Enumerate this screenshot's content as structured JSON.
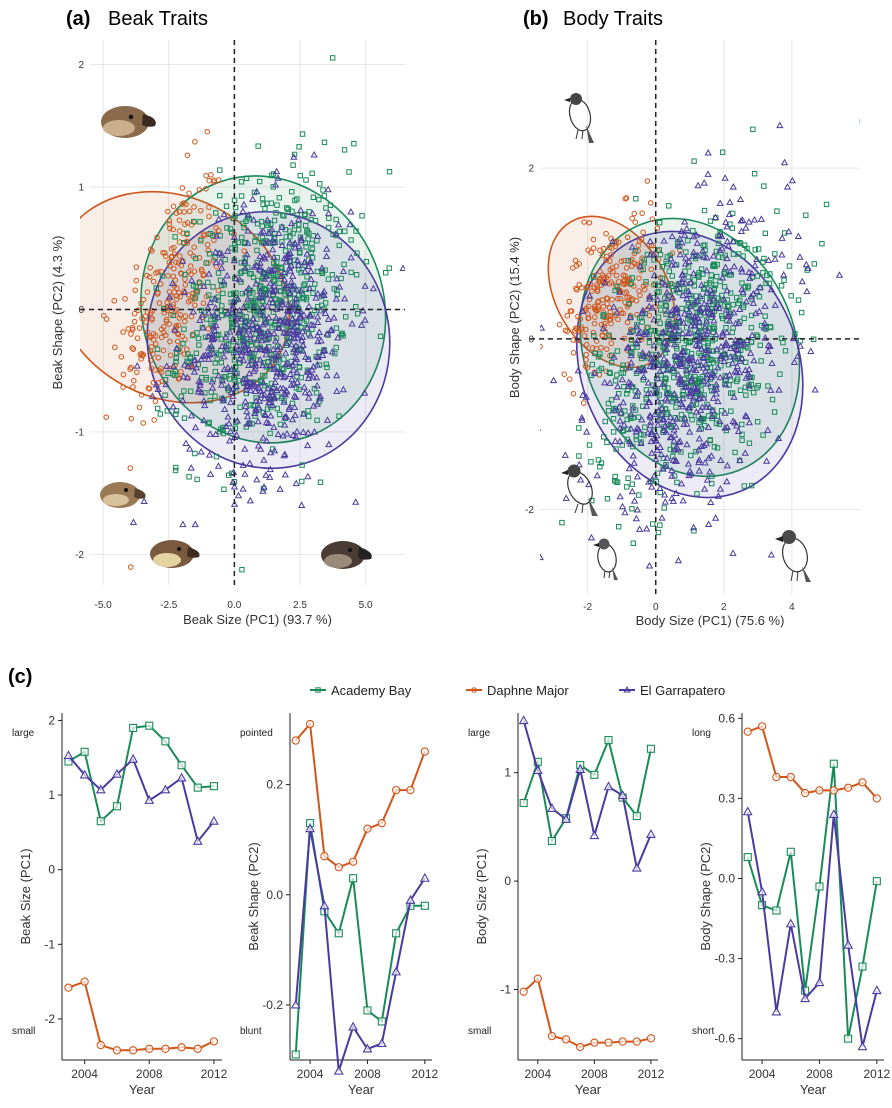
{
  "colors": {
    "Academy Bay": "#1a8a5a",
    "Daphne Major": "#d0561a",
    "El Garrapatero": "#4b3aa0"
  },
  "icons": [
    "finch-head-icon",
    "finch-body-icon"
  ],
  "chart_data": [
    {
      "id": "a",
      "type": "scatter",
      "panel_label": "(a)",
      "title": "Beak Traits",
      "xlabel": "Beak Size (PC1) (93.7 %)",
      "ylabel": "Beak Shape (PC2) (4.3 %)",
      "xlim": [
        -5.5,
        6.5
      ],
      "ylim": [
        -2.25,
        2.2
      ],
      "xticks": [
        -5.0,
        -2.5,
        0.0,
        2.5,
        5.0
      ],
      "xtick_labels": [
        "-5.0",
        "-2.5",
        "0.0",
        "2.5",
        "5.0"
      ],
      "yticks": [
        -2,
        -1,
        0,
        1,
        2
      ],
      "ytick_labels": [
        "-2",
        "-1",
        "0",
        "1",
        "2"
      ],
      "grid": true,
      "ellipses": [
        {
          "name": "Daphne Major",
          "cx": -2.4,
          "cy": 0.1,
          "rx": 2.9,
          "ry": 1.0,
          "angle": 62
        },
        {
          "name": "Academy Bay",
          "cx": 1.1,
          "cy": 0.0,
          "rx": 3.5,
          "ry": 1.1,
          "angle": 18
        },
        {
          "name": "El Garrapatero",
          "cx": 1.3,
          "cy": -0.25,
          "rx": 3.5,
          "ry": 1.05,
          "angle": 12
        }
      ],
      "series": [
        {
          "name": "Daphne Major",
          "marker": "circle",
          "cx": -2.4,
          "cy": 0.1,
          "sx": 1.0,
          "sy": 0.5,
          "rho": 0.5,
          "n": 260
        },
        {
          "name": "Academy Bay",
          "marker": "square",
          "cx": 1.1,
          "cy": 0.0,
          "sx": 1.6,
          "sy": 0.55,
          "rho": 0.25,
          "n": 650
        },
        {
          "name": "El Garrapatero",
          "marker": "triangle",
          "cx": 1.3,
          "cy": -0.25,
          "sx": 1.6,
          "sy": 0.55,
          "rho": 0.2,
          "n": 600
        }
      ]
    },
    {
      "id": "b",
      "type": "scatter",
      "panel_label": "(b)",
      "title": "Body Traits",
      "xlabel": "Body Size (PC1) (75.6 %)",
      "ylabel": "Body Shape (PC2) (15.4 %)",
      "xlim": [
        -3.4,
        6.0
      ],
      "ylim": [
        -3.0,
        3.5
      ],
      "xticks": [
        -2,
        0,
        2,
        4
      ],
      "xtick_labels": [
        "-2",
        "0",
        "2",
        "4"
      ],
      "yticks": [
        -2,
        0,
        2
      ],
      "ytick_labels": [
        "-2",
        "0",
        "2"
      ],
      "grid": true,
      "ellipses": [
        {
          "name": "Daphne Major",
          "cx": -1.3,
          "cy": 0.55,
          "rx": 1.75,
          "ry": 0.95,
          "angle": 30
        },
        {
          "name": "Academy Bay",
          "cx": 1.0,
          "cy": -0.1,
          "rx": 3.3,
          "ry": 1.55,
          "angle": 22
        },
        {
          "name": "El Garrapatero",
          "cx": 1.0,
          "cy": -0.3,
          "rx": 3.4,
          "ry": 1.6,
          "angle": 22
        }
      ],
      "series": [
        {
          "name": "Daphne Major",
          "marker": "circle",
          "cx": -1.3,
          "cy": 0.55,
          "sx": 0.7,
          "sy": 0.45,
          "rho": 0.4,
          "n": 240
        },
        {
          "name": "Academy Bay",
          "marker": "square",
          "cx": 1.0,
          "cy": -0.1,
          "sx": 1.4,
          "sy": 0.8,
          "rho": 0.35,
          "n": 650
        },
        {
          "name": "El Garrapatero",
          "marker": "triangle",
          "cx": 1.0,
          "cy": -0.3,
          "sx": 1.45,
          "sy": 0.85,
          "rho": 0.35,
          "n": 600
        }
      ]
    },
    {
      "id": "c1",
      "type": "line",
      "panel_label": "(c)",
      "xlabel": "Year",
      "ylabel": "Beak Size (PC1)",
      "xlim": [
        2002.6,
        2012.5
      ],
      "ylim": [
        -2.55,
        2.1
      ],
      "xticks": [
        2004,
        2008,
        2012
      ],
      "yticks": [
        -2,
        -1,
        0,
        1,
        2
      ],
      "ytick_labels": [
        "-2",
        "-1",
        "0",
        "1",
        "2"
      ],
      "endpoint_labels": {
        "top": "large",
        "bottom": "small"
      },
      "x": [
        2003,
        2004,
        2005,
        2006,
        2007,
        2008,
        2009,
        2010,
        2011,
        2012
      ],
      "series": [
        {
          "name": "Academy Bay",
          "values": [
            1.45,
            1.58,
            0.65,
            0.85,
            1.9,
            1.93,
            1.72,
            1.4,
            1.1,
            1.12
          ]
        },
        {
          "name": "Daphne Major",
          "values": [
            -1.58,
            -1.5,
            -2.35,
            -2.42,
            -2.42,
            -2.4,
            -2.4,
            -2.38,
            -2.4,
            -2.3
          ]
        },
        {
          "name": "El Garrapatero",
          "values": [
            1.53,
            1.27,
            1.07,
            1.28,
            1.48,
            0.93,
            1.07,
            1.23,
            0.38,
            0.65
          ]
        }
      ]
    },
    {
      "id": "c2",
      "type": "line",
      "xlabel": "Year",
      "ylabel": "Beak Shape (PC2)",
      "xlim": [
        2002.6,
        2012.5
      ],
      "ylim": [
        -0.3,
        0.33
      ],
      "xticks": [
        2004,
        2008,
        2012
      ],
      "yticks": [
        -0.2,
        0.0,
        0.2
      ],
      "ytick_labels": [
        "-0.2",
        "0.0",
        "0.2"
      ],
      "endpoint_labels": {
        "top": "pointed",
        "bottom": "blunt"
      },
      "x": [
        2003,
        2004,
        2005,
        2006,
        2007,
        2008,
        2009,
        2010,
        2011,
        2012
      ],
      "series": [
        {
          "name": "Academy Bay",
          "values": [
            -0.29,
            0.13,
            -0.03,
            -0.07,
            0.03,
            -0.21,
            -0.23,
            -0.07,
            -0.02,
            -0.02
          ]
        },
        {
          "name": "Daphne Major",
          "values": [
            0.28,
            0.31,
            0.07,
            0.05,
            0.06,
            0.12,
            0.13,
            0.19,
            0.19,
            0.26
          ]
        },
        {
          "name": "El Garrapatero",
          "values": [
            -0.2,
            0.12,
            -0.02,
            -0.32,
            -0.24,
            -0.28,
            -0.27,
            -0.14,
            -0.01,
            0.03
          ]
        }
      ]
    },
    {
      "id": "c3",
      "type": "line",
      "xlabel": "Year",
      "ylabel": "Body Size (PC1)",
      "xlim": [
        2002.6,
        2012.5
      ],
      "ylim": [
        -1.65,
        1.55
      ],
      "xticks": [
        2004,
        2008,
        2012
      ],
      "yticks": [
        -1,
        0,
        1
      ],
      "ytick_labels": [
        "-1",
        "0",
        "1"
      ],
      "endpoint_labels": {
        "top": "large",
        "bottom": "small"
      },
      "x": [
        2003,
        2004,
        2005,
        2006,
        2007,
        2008,
        2009,
        2010,
        2011,
        2012
      ],
      "series": [
        {
          "name": "Academy Bay",
          "values": [
            0.72,
            1.1,
            0.37,
            0.58,
            1.07,
            0.98,
            1.3,
            0.77,
            0.6,
            1.22
          ]
        },
        {
          "name": "Daphne Major",
          "values": [
            -1.02,
            -0.9,
            -1.43,
            -1.46,
            -1.53,
            -1.49,
            -1.49,
            -1.48,
            -1.48,
            -1.45
          ]
        },
        {
          "name": "El Garrapatero",
          "values": [
            1.48,
            1.02,
            0.67,
            0.57,
            1.03,
            0.42,
            0.87,
            0.79,
            0.12,
            0.43
          ]
        }
      ]
    },
    {
      "id": "c4",
      "type": "line",
      "xlabel": "Year",
      "ylabel": "Body Shape (PC2)",
      "xlim": [
        2002.6,
        2012.5
      ],
      "ylim": [
        -0.68,
        0.62
      ],
      "xticks": [
        2004,
        2008,
        2012
      ],
      "yticks": [
        -0.6,
        -0.3,
        0.0,
        0.3,
        0.6
      ],
      "ytick_labels": [
        "-0.6",
        "-0.3",
        "0.0",
        "0.3",
        "0.6"
      ],
      "endpoint_labels": {
        "top": "long",
        "bottom": "short"
      },
      "x": [
        2003,
        2004,
        2005,
        2006,
        2007,
        2008,
        2009,
        2010,
        2011,
        2012
      ],
      "series": [
        {
          "name": "Academy Bay",
          "values": [
            0.08,
            -0.1,
            -0.12,
            0.1,
            -0.42,
            -0.03,
            0.43,
            -0.6,
            -0.33,
            -0.01
          ]
        },
        {
          "name": "Daphne Major",
          "values": [
            0.55,
            0.57,
            0.38,
            0.38,
            0.32,
            0.33,
            0.33,
            0.34,
            0.36,
            0.3
          ]
        },
        {
          "name": "El Garrapatero",
          "values": [
            0.25,
            -0.05,
            -0.5,
            -0.17,
            -0.45,
            -0.39,
            0.24,
            -0.25,
            -0.63,
            -0.42
          ]
        }
      ]
    }
  ],
  "legend": {
    "position": "top-center",
    "items": [
      "Academy Bay",
      "Daphne Major",
      "El Garrapatero"
    ]
  }
}
